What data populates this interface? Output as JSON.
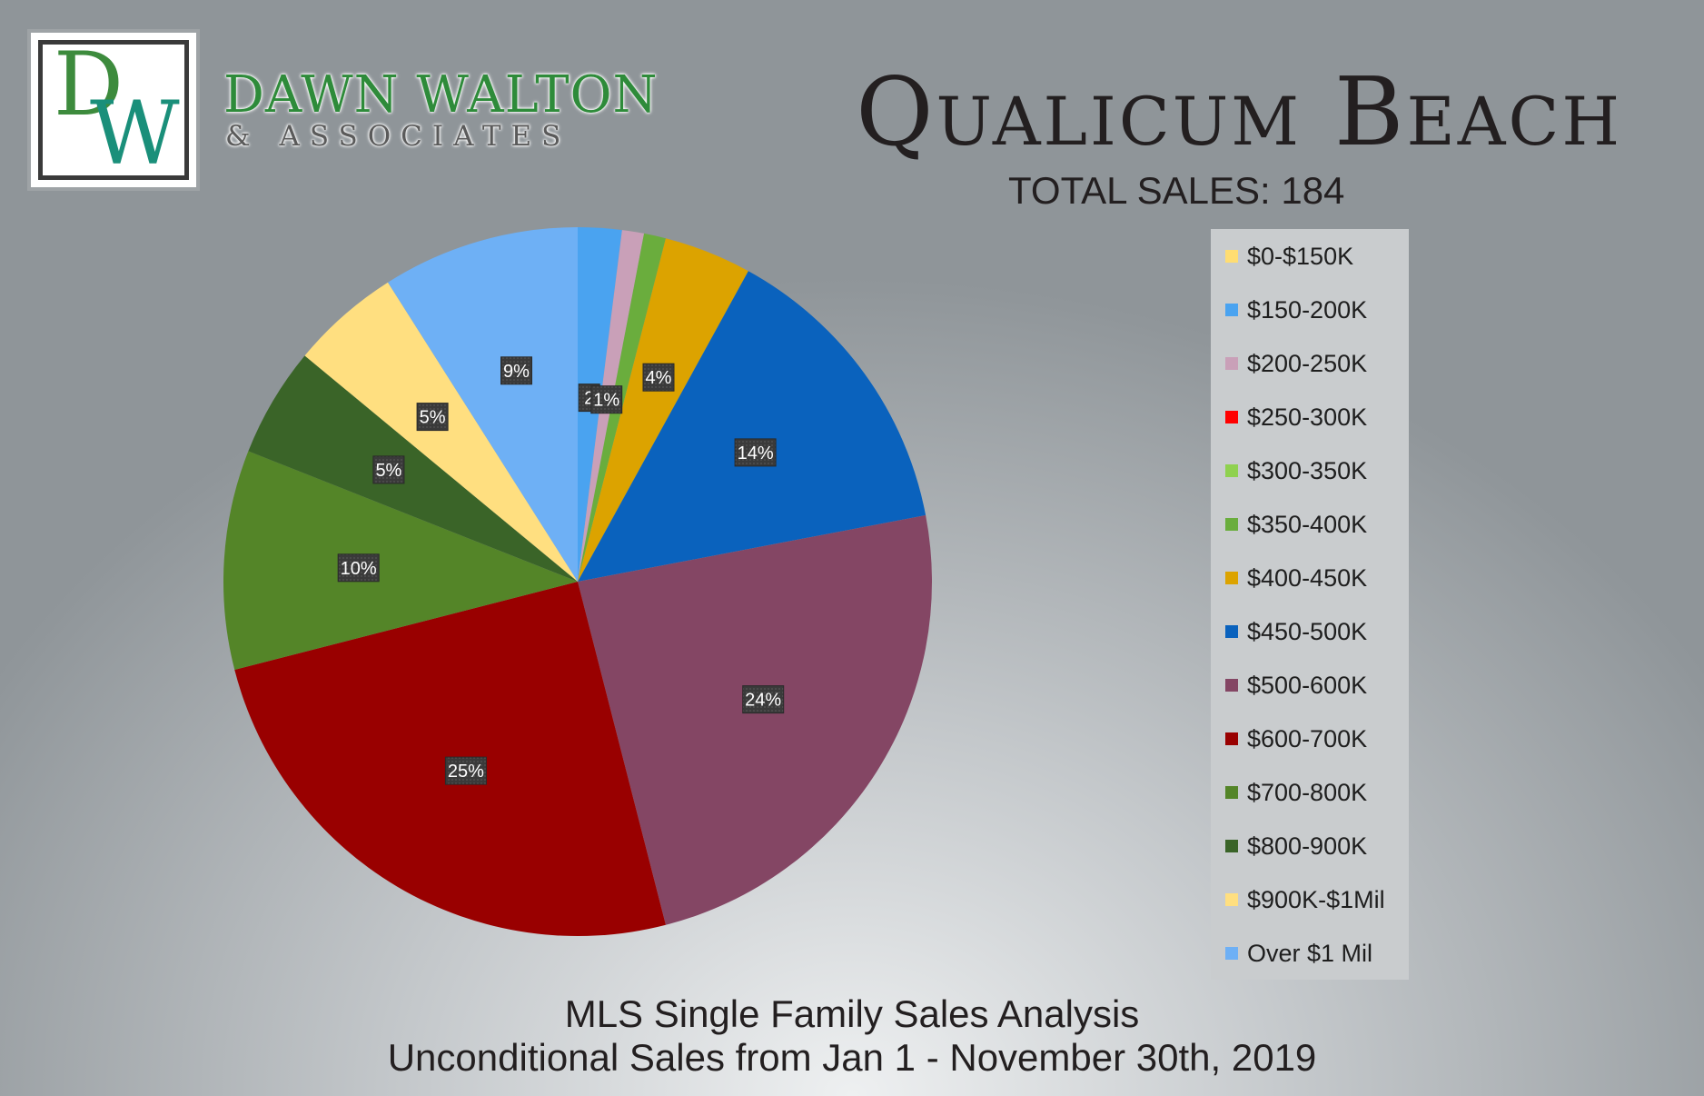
{
  "brand": {
    "name": "DAWN WALTON",
    "subname": "& ASSOCIATES",
    "logo_letters": "DW"
  },
  "header": {
    "city": "Qualicum Beach",
    "total_sales": "TOTAL SALES: 184"
  },
  "footer": {
    "line1": "MLS Single Family Sales Analysis",
    "line2": "Unconditional Sales from Jan 1 - November 30th, 2019"
  },
  "chart_data": {
    "type": "pie",
    "start_angle": "12 o'clock, clockwise",
    "legend_position": "right",
    "categories": [
      "$0-$150K",
      "$150-200K",
      "$200-250K",
      "$250-300K",
      "$300-350K",
      "$350-400K",
      "$400-450K",
      "$450-500K",
      "$500-600K",
      "$600-700K",
      "$700-800K",
      "$800-900K",
      "$900K-$1Mil",
      "Over $1 Mil"
    ],
    "values": [
      0,
      2,
      1,
      0,
      0,
      1,
      4,
      14,
      24,
      25,
      10,
      5,
      5,
      9
    ],
    "data_labels": [
      "",
      "2",
      "1%",
      "",
      "",
      "",
      "4%",
      "14%",
      "24%",
      "25%",
      "10%",
      "5%",
      "5%",
      "9%"
    ],
    "colors": [
      "#ffdd72",
      "#4aa3f0",
      "#c9a0b8",
      "#ff0000",
      "#8fd14f",
      "#6aad3d",
      "#dca300",
      "#0a62bd",
      "#844664",
      "#990000",
      "#548528",
      "#3a6428",
      "#ffdf80",
      "#6eb0f5"
    ]
  }
}
